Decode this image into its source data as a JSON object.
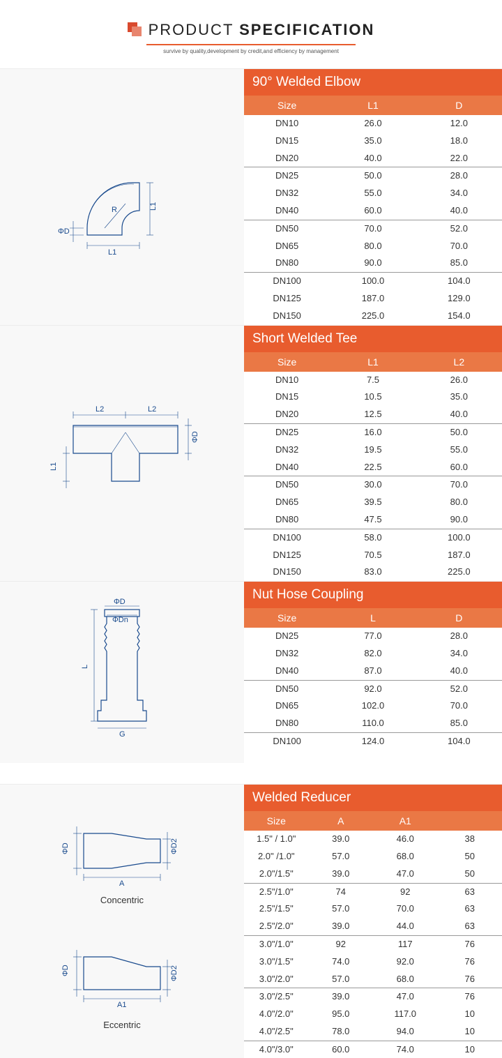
{
  "header": {
    "title_prefix": "PRODUCT",
    "title_suffix": "SPECIFICATION",
    "subtitle": "survive by quality,development by credit,and efficiency by management"
  },
  "sections": [
    {
      "title": "90° Welded Elbow",
      "diagram": "elbow",
      "columns": [
        "Size",
        "L1",
        "D"
      ],
      "groups": [
        [
          [
            "DN10",
            "26.0",
            "12.0"
          ],
          [
            "DN15",
            "35.0",
            "18.0"
          ],
          [
            "DN20",
            "40.0",
            "22.0"
          ]
        ],
        [
          [
            "DN25",
            "50.0",
            "28.0"
          ],
          [
            "DN32",
            "55.0",
            "34.0"
          ],
          [
            "DN40",
            "60.0",
            "40.0"
          ]
        ],
        [
          [
            "DN50",
            "70.0",
            "52.0"
          ],
          [
            "DN65",
            "80.0",
            "70.0"
          ],
          [
            "DN80",
            "90.0",
            "85.0"
          ]
        ],
        [
          [
            "DN100",
            "100.0",
            "104.0"
          ],
          [
            "DN125",
            "187.0",
            "129.0"
          ],
          [
            "DN150",
            "225.0",
            "154.0"
          ]
        ]
      ]
    },
    {
      "title": "Short Welded Tee",
      "diagram": "tee",
      "columns": [
        "Size",
        "L1",
        "L2"
      ],
      "groups": [
        [
          [
            "DN10",
            "7.5",
            "26.0"
          ],
          [
            "DN15",
            "10.5",
            "35.0"
          ],
          [
            "DN20",
            "12.5",
            "40.0"
          ]
        ],
        [
          [
            "DN25",
            "16.0",
            "50.0"
          ],
          [
            "DN32",
            "19.5",
            "55.0"
          ],
          [
            "DN40",
            "22.5",
            "60.0"
          ]
        ],
        [
          [
            "DN50",
            "30.0",
            "70.0"
          ],
          [
            "DN65",
            "39.5",
            "80.0"
          ],
          [
            "DN80",
            "47.5",
            "90.0"
          ]
        ],
        [
          [
            "DN100",
            "58.0",
            "100.0"
          ],
          [
            "DN125",
            "70.5",
            "187.0"
          ],
          [
            "DN150",
            "83.0",
            "225.0"
          ]
        ]
      ]
    },
    {
      "title": "Nut Hose Coupling",
      "diagram": "hose",
      "columns": [
        "Size",
        "L",
        "D"
      ],
      "groups": [
        [
          [
            "DN25",
            "77.0",
            "28.0"
          ],
          [
            "DN32",
            "82.0",
            "34.0"
          ],
          [
            "DN40",
            "87.0",
            "40.0"
          ]
        ],
        [
          [
            "DN50",
            "92.0",
            "52.0"
          ],
          [
            "DN65",
            "102.0",
            "70.0"
          ],
          [
            "DN80",
            "110.0",
            "85.0"
          ]
        ],
        [
          [
            "DN100",
            "124.0",
            "104.0"
          ]
        ]
      ]
    },
    {
      "title": "Welded Reducer",
      "diagram": "reducer",
      "columns": [
        "Size",
        "A",
        "A1",
        ""
      ],
      "labels": {
        "concentric": "Concentric",
        "eccentric": "Eccentric"
      },
      "groups": [
        [
          [
            "1.5\"  / 1.0\"",
            "39.0",
            "46.0",
            "38"
          ],
          [
            "2.0\" /1.0\"",
            "57.0",
            "68.0",
            "50"
          ],
          [
            "2.0\"/1.5\"",
            "39.0",
            "47.0",
            "50"
          ]
        ],
        [
          [
            "2.5\"/1.0\"",
            "74",
            "92",
            "63"
          ],
          [
            "2.5\"/1.5\"",
            "57.0",
            "70.0",
            "63"
          ],
          [
            "2.5\"/2.0\"",
            "39.0",
            "44.0",
            "63"
          ]
        ],
        [
          [
            "3.0\"/1.0\"",
            "92",
            "117",
            "76"
          ],
          [
            "3.0\"/1.5\"",
            "74.0",
            "92.0",
            "76"
          ],
          [
            "3.0\"/2.0\"",
            "57.0",
            "68.0",
            "76"
          ]
        ],
        [
          [
            "3.0\"/2.5\"",
            "39.0",
            "47.0",
            "76"
          ],
          [
            "4.0\"/2.0\"",
            "95.0",
            "117.0",
            "10"
          ],
          [
            "4.0\"/2.5\"",
            "78.0",
            "94.0",
            "10"
          ]
        ],
        [
          [
            "4.0\"/3.0\"",
            "60.0",
            "74.0",
            "10"
          ]
        ]
      ]
    }
  ],
  "colors": {
    "title_bg": "#e85c2e",
    "head_bg": "#ea7845",
    "diagram_bg": "#f8f8f8",
    "sep": "#999999",
    "text": "#333333"
  }
}
